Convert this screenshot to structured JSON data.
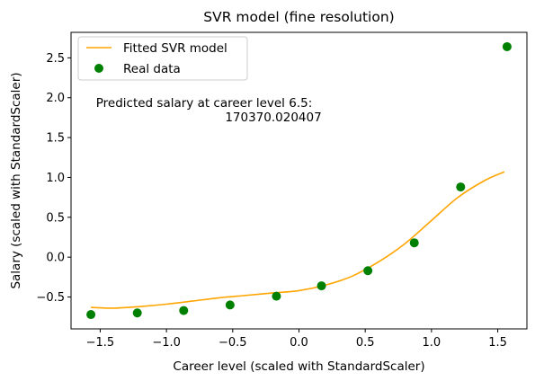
{
  "chart_data": {
    "type": "scatter",
    "title": "SVR model (fine resolution)",
    "xlabel": "Career level (scaled with StandardScaler)",
    "ylabel": "Salary (scaled with StandardScaler)",
    "xlim": [
      -1.72,
      1.72
    ],
    "ylim": [
      -0.9,
      2.82
    ],
    "xticks": [
      -1.5,
      -1.0,
      -0.5,
      0.0,
      0.5,
      1.0,
      1.5
    ],
    "xtick_labels": [
      "−1.5",
      "−1.0",
      "−0.5",
      "0.0",
      "0.5",
      "1.0",
      "1.5"
    ],
    "yticks": [
      -0.5,
      0.0,
      0.5,
      1.0,
      1.5,
      2.0,
      2.5
    ],
    "ytick_labels": [
      "−0.5",
      "0.0",
      "0.5",
      "1.0",
      "1.5",
      "2.0",
      "2.5"
    ],
    "grid": false,
    "legend_position": "top-left",
    "series": [
      {
        "name": "Fitted SVR model",
        "kind": "line",
        "color": "#FFA500",
        "x": [
          -1.57,
          -1.4,
          -1.2,
          -1.0,
          -0.8,
          -0.6,
          -0.4,
          -0.2,
          0.0,
          0.2,
          0.4,
          0.6,
          0.8,
          1.0,
          1.2,
          1.4,
          1.55
        ],
        "y": [
          -0.63,
          -0.64,
          -0.62,
          -0.59,
          -0.55,
          -0.51,
          -0.48,
          -0.45,
          -0.42,
          -0.35,
          -0.24,
          -0.06,
          0.17,
          0.46,
          0.75,
          0.96,
          1.07
        ]
      },
      {
        "name": "Real data",
        "kind": "scatter",
        "color": "#008000",
        "x": [
          -1.57,
          -1.22,
          -0.87,
          -0.52,
          -0.17,
          0.17,
          0.52,
          0.87,
          1.22,
          1.57
        ],
        "y": [
          -0.72,
          -0.7,
          -0.67,
          -0.6,
          -0.49,
          -0.36,
          -0.17,
          0.18,
          0.88,
          2.64
        ]
      }
    ],
    "annotation": {
      "line1": "Predicted salary at career level 6.5:",
      "line2": "170370.020407"
    }
  }
}
